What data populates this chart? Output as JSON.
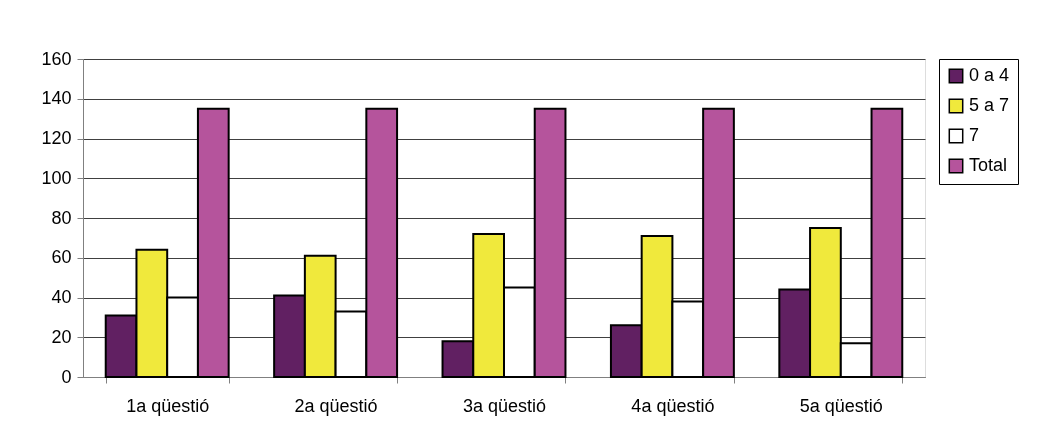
{
  "chart_data": {
    "type": "bar",
    "categories": [
      "1a qüestió",
      "2a qüestió",
      "3a qüestió",
      "4a qüestió",
      "5a qüestió"
    ],
    "series": [
      {
        "name": "0 a 4",
        "color": "#612062",
        "values": [
          31,
          41,
          18,
          26,
          44
        ]
      },
      {
        "name": "5 a 7",
        "color": "#f0e93c",
        "values": [
          64,
          61,
          72,
          71,
          75
        ]
      },
      {
        "name": "7",
        "color": "#ffffff",
        "values": [
          40,
          33,
          45,
          38,
          17
        ]
      },
      {
        "name": "Total",
        "color": "#b5549c",
        "values": [
          135,
          135,
          135,
          135,
          135
        ]
      }
    ],
    "ylim": [
      0,
      160
    ],
    "yticks": [
      0,
      20,
      40,
      60,
      80,
      100,
      120,
      140,
      160
    ],
    "grid": "y",
    "legend": "right"
  }
}
